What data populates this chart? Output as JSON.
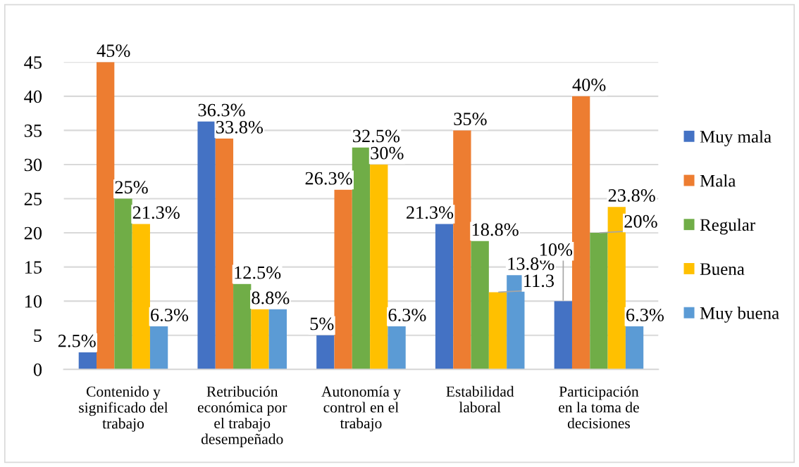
{
  "chart_data": {
    "type": "bar",
    "categories": [
      "Contenido y\nsignificado del\ntrabajo",
      "Retribución\neconómica por\nel trabajo\ndesempeñado",
      "Autonomía y\ncontrol en el\ntrabajo",
      "Estabilidad\nlaboral",
      "Participación\nen la toma de\ndecisiones"
    ],
    "series": [
      {
        "name": "Muy mala",
        "color": "#4472c4",
        "values": [
          2.5,
          36.3,
          5,
          21.3,
          10
        ],
        "value_labels": [
          "2.5%",
          "36.3%",
          "5%",
          "21.3%",
          "10%"
        ]
      },
      {
        "name": "Mala",
        "color": "#ed7d31",
        "values": [
          45,
          33.8,
          26.3,
          35,
          40
        ],
        "value_labels": [
          "45%",
          "33.8%",
          "26.3%",
          "35%",
          "40%"
        ]
      },
      {
        "name": "Regular",
        "color": "#70ad47",
        "values": [
          25,
          12.5,
          32.5,
          18.8,
          20
        ],
        "value_labels": [
          "25%",
          "12.5%",
          "32.5%",
          "18.8%",
          "20%"
        ]
      },
      {
        "name": "Buena",
        "color": "#ffc000",
        "values": [
          21.3,
          8.8,
          30,
          11.3,
          23.8
        ],
        "value_labels": [
          "21.3%",
          "8.8%",
          "30%",
          "11.3",
          "23.8%"
        ]
      },
      {
        "name": "Muy buena",
        "color": "#5b9bd5",
        "values": [
          6.3,
          8.8,
          6.3,
          13.8,
          6.3
        ],
        "value_labels": [
          "6.3%",
          null,
          "6.3%",
          "13.8%",
          "6.3%"
        ]
      }
    ],
    "ylim": [
      0,
      45
    ],
    "yticks": [
      0,
      5,
      10,
      15,
      20,
      25,
      30,
      35,
      40,
      45
    ],
    "grid": "y",
    "legend": "right"
  }
}
